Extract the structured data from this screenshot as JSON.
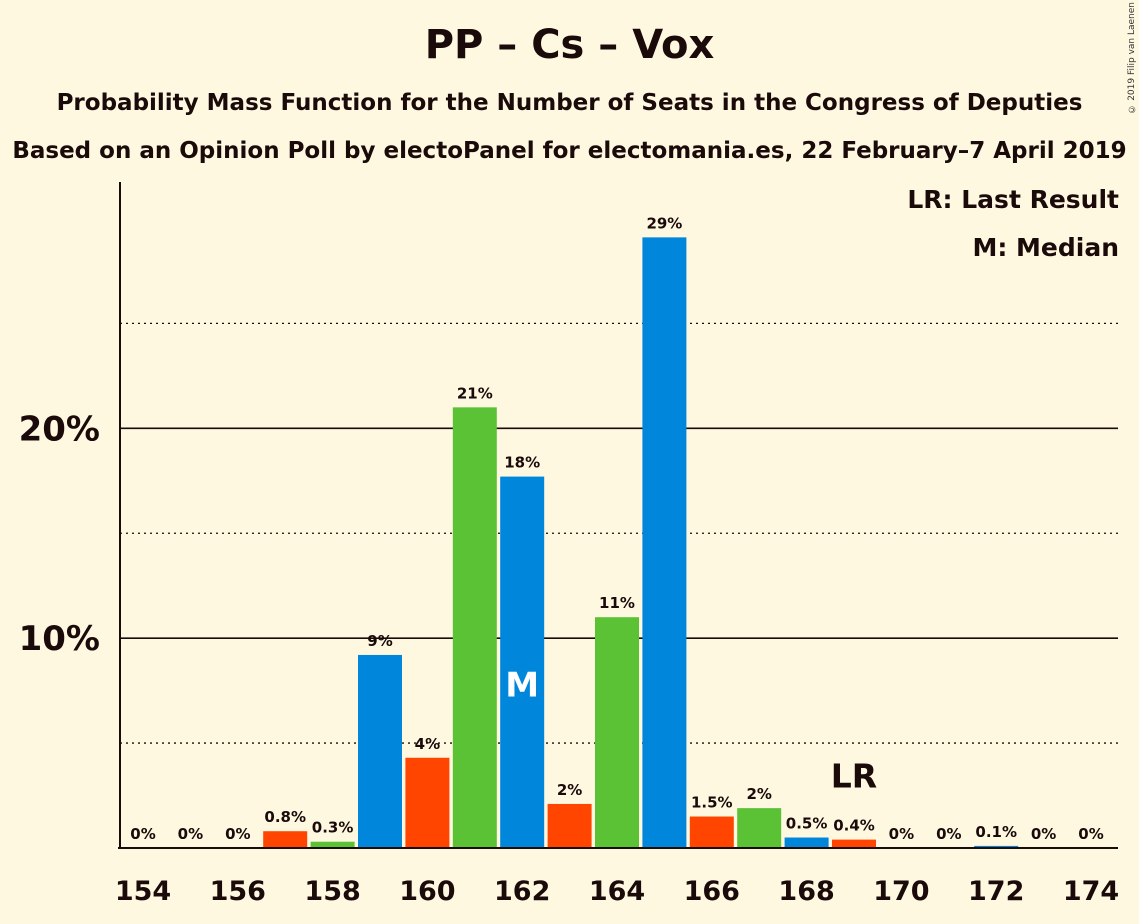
{
  "title": "PP – Cs – Vox",
  "subtitle1": "Probability Mass Function for the Number of Seats in the Congress of Deputies",
  "subtitle2": "Based on an Opinion Poll by electoPanel for electomania.es, 22 February–7 April 2019",
  "legend": {
    "lr": "LR: Last Result",
    "m": "M: Median"
  },
  "copyright": "© 2019 Filip van Laenen",
  "colors": {
    "blue": "#0087dc",
    "green": "#5bc236",
    "orange": "#ff4500",
    "background": "#fff8e1"
  },
  "chart_data": {
    "type": "bar",
    "x": [
      154,
      155,
      156,
      157,
      158,
      159,
      160,
      161,
      162,
      163,
      164,
      165,
      166,
      167,
      168,
      169,
      170,
      171,
      172,
      173,
      174
    ],
    "values": [
      0,
      0,
      0,
      0.8,
      0.3,
      9.2,
      4.3,
      21.0,
      17.7,
      2.1,
      11.0,
      29.1,
      1.5,
      1.9,
      0.5,
      0.4,
      0,
      0,
      0.1,
      0,
      0
    ],
    "labels": [
      "0%",
      "0%",
      "0%",
      "0.8%",
      "0.3%",
      "9%",
      "4%",
      "21%",
      "18%",
      "2%",
      "11%",
      "29%",
      "1.5%",
      "2%",
      "0.5%",
      "0.4%",
      "0%",
      "0%",
      "0.1%",
      "0%",
      "0%"
    ],
    "bar_colors": [
      "blue",
      "blue",
      "blue",
      "orange",
      "green",
      "blue",
      "orange",
      "green",
      "blue",
      "orange",
      "green",
      "blue",
      "orange",
      "green",
      "blue",
      "orange",
      "blue",
      "blue",
      "blue",
      "blue",
      "blue"
    ],
    "xticks": [
      "154",
      "156",
      "158",
      "160",
      "162",
      "164",
      "166",
      "168",
      "170",
      "172",
      "174"
    ],
    "yticks": [
      "10%",
      "20%"
    ],
    "ylim": [
      0,
      31.5
    ],
    "median": 162,
    "median_label": "M",
    "last_result": 169,
    "last_result_label": "LR"
  }
}
